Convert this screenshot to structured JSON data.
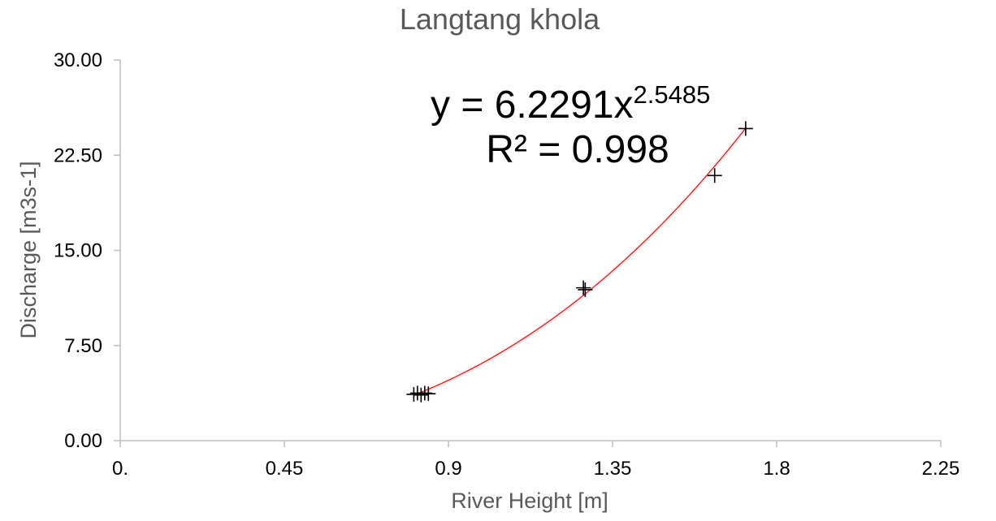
{
  "chart_data": {
    "type": "scatter",
    "title": "Langtang khola",
    "xlabel": "River Height [m]",
    "ylabel": "Discharge [m3s-1]",
    "xlim": [
      0,
      2.25
    ],
    "ylim": [
      0,
      30
    ],
    "x_ticks": [
      "0.",
      "0.45",
      "0.9",
      "1.35",
      "1.8",
      "2.25"
    ],
    "x_tick_values": [
      0,
      0.45,
      0.9,
      1.35,
      1.8,
      2.25
    ],
    "y_ticks": [
      "0.00",
      "7.50",
      "15.00",
      "22.50",
      "30.00"
    ],
    "y_tick_values": [
      0,
      7.5,
      15,
      22.5,
      30
    ],
    "grid": false,
    "marker": "plus",
    "points": [
      {
        "x": 0.805,
        "y": 3.65
      },
      {
        "x": 0.815,
        "y": 3.75
      },
      {
        "x": 0.825,
        "y": 3.6
      },
      {
        "x": 0.835,
        "y": 3.75
      },
      {
        "x": 0.845,
        "y": 3.7
      },
      {
        "x": 1.27,
        "y": 12.05
      },
      {
        "x": 1.275,
        "y": 11.9
      },
      {
        "x": 1.63,
        "y": 20.9
      },
      {
        "x": 1.715,
        "y": 24.6
      }
    ],
    "trendline": {
      "type": "power",
      "a": 6.2291,
      "b": 2.5485,
      "x_range": [
        0.82,
        1.715
      ],
      "color": "#ff0000"
    },
    "equation": {
      "prefix": "y = 6.2291x",
      "exponent": "2.5485",
      "r2": "R² = 0.998"
    },
    "colors": {
      "axis": "#bfbfbf",
      "marker": "#000000",
      "trendline": "#ff0000"
    }
  }
}
